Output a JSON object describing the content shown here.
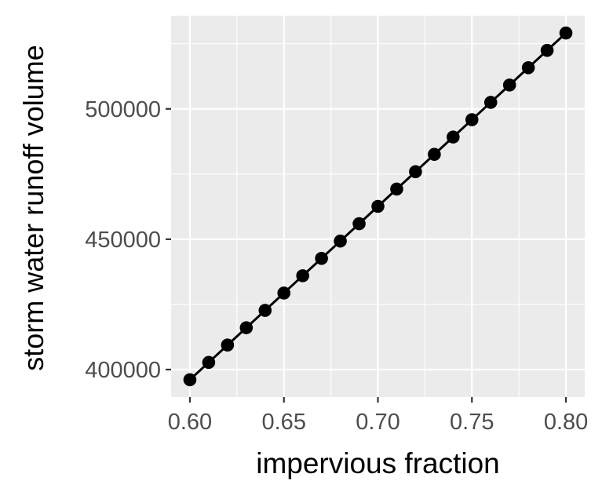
{
  "chart_data": {
    "type": "line",
    "title": "",
    "xlabel": "impervious fraction",
    "ylabel": "storm water runoff volume",
    "x": [
      0.6,
      0.61,
      0.62,
      0.63,
      0.64,
      0.65,
      0.66,
      0.67,
      0.68,
      0.69,
      0.7,
      0.71,
      0.72,
      0.73,
      0.74,
      0.75,
      0.76,
      0.77,
      0.78,
      0.79,
      0.8
    ],
    "series": [
      {
        "values": [
          396100,
          402750,
          409400,
          416050,
          422700,
          429350,
          436000,
          442650,
          449300,
          455950,
          462600,
          469250,
          475900,
          482550,
          489200,
          495850,
          502500,
          509150,
          515800,
          522450,
          529100
        ],
        "color": "#000000",
        "markers": true
      }
    ],
    "xlim": [
      0.59,
      0.81
    ],
    "ylim": [
      389450,
      535750
    ],
    "x_ticks": [
      0.6,
      0.65,
      0.7,
      0.75,
      0.8
    ],
    "x_tick_labels": [
      "0.60",
      "0.65",
      "0.70",
      "0.75",
      "0.80"
    ],
    "y_ticks": [
      400000,
      450000,
      500000
    ],
    "y_tick_labels": [
      "400000",
      "450000",
      "500000"
    ],
    "grid": true,
    "panel_background": "#ebebeb",
    "grid_color": "#ffffff",
    "tick_label_color": "#4d4d4d",
    "axis_title_color": "#000000"
  }
}
